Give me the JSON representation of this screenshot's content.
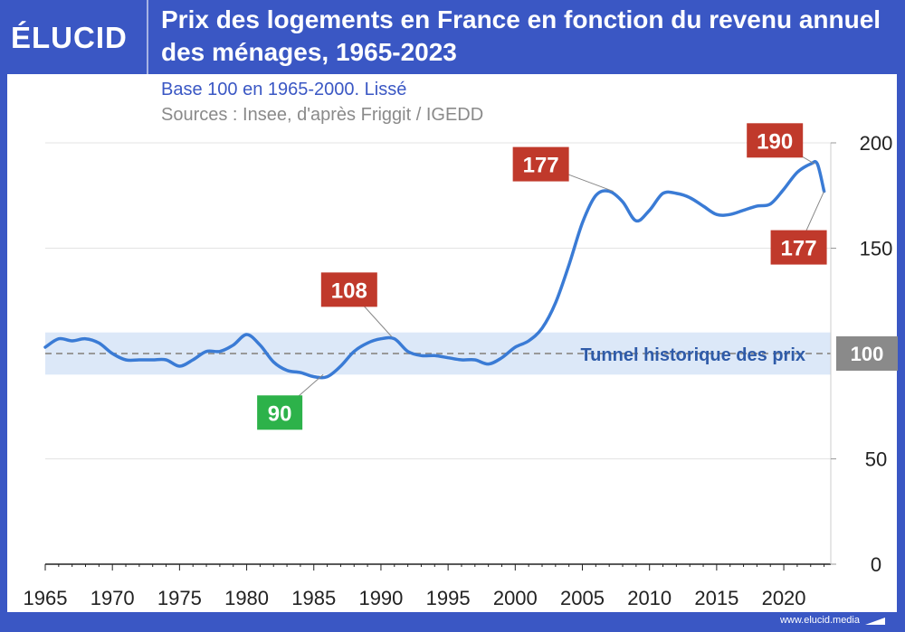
{
  "brand": {
    "logo_text": "ÉLUCID",
    "footer": "www.elucid.media"
  },
  "colors": {
    "brand_blue": "#3a57c4",
    "line": "#3a7bd5",
    "band": "#dce8f8",
    "label_red": "#c0392b",
    "label_green": "#2db24a",
    "label_gray": "#8a8a8a",
    "tunnel_text": "#2f5ba8"
  },
  "chart_data": {
    "type": "line",
    "title": "Prix des logements en France en fonction du revenu annuel des ménages, 1965-2023",
    "subtitle": "Base 100 en 1965-2000. Lissé",
    "source": "Sources : Insee, d'après Friggit / IGEDD",
    "xlim": [
      1965,
      2023.5
    ],
    "ylim": [
      0,
      200
    ],
    "x_ticks": [
      1965,
      1970,
      1975,
      1980,
      1985,
      1990,
      1995,
      2000,
      2005,
      2010,
      2015,
      2020
    ],
    "y_ticks": [
      0,
      50,
      150,
      200
    ],
    "grid": true,
    "y_axis_side": "right",
    "band": {
      "from": 90,
      "to": 110,
      "label": "Tunnel historique des prix"
    },
    "reference_line": {
      "y": 100,
      "label": "100",
      "style": "dashed"
    },
    "series": [
      {
        "x": [
          1965,
          1966,
          1967,
          1968,
          1969,
          1970,
          1971,
          1972,
          1973,
          1974,
          1975,
          1976,
          1977,
          1978,
          1979,
          1980,
          1981,
          1982,
          1983,
          1984,
          1985,
          1986,
          1987,
          1988,
          1989,
          1990,
          1991,
          1992,
          1993,
          1994,
          1995,
          1996,
          1997,
          1998,
          1999,
          2000,
          2001,
          2002,
          2003,
          2004,
          2005,
          2006,
          2007,
          2008,
          2009,
          2010,
          2011,
          2012,
          2013,
          2014,
          2015,
          2016,
          2017,
          2018,
          2019,
          2020,
          2021,
          2022,
          2022.5,
          2023
        ],
        "y": [
          103,
          107,
          106,
          107,
          105,
          100,
          97,
          97,
          97,
          97,
          94,
          97,
          101,
          101,
          104,
          109,
          104,
          96,
          92,
          91,
          89,
          89,
          94,
          101,
          105,
          107,
          107,
          101,
          99,
          99,
          98,
          97,
          97,
          95,
          98,
          103,
          106,
          112,
          124,
          142,
          162,
          175,
          177,
          172,
          163,
          168,
          176,
          176,
          174,
          170,
          166,
          166,
          168,
          170,
          171,
          178,
          186,
          190,
          190,
          177
        ]
      }
    ],
    "annotations": [
      {
        "x": 1990.8,
        "y": 108,
        "label": "108",
        "color": "red"
      },
      {
        "x": 1985.7,
        "y": 90,
        "label": "90",
        "color": "green"
      },
      {
        "x": 2007.3,
        "y": 177,
        "label": "177",
        "color": "red"
      },
      {
        "x": 2022.3,
        "y": 190,
        "label": "190",
        "color": "red"
      },
      {
        "x": 2023,
        "y": 177,
        "label": "177",
        "color": "red"
      }
    ]
  }
}
